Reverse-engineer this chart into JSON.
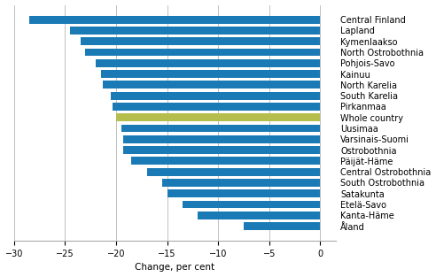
{
  "regions": [
    "Central Finland",
    "Lapland",
    "Kymenlaakso",
    "North Ostrobothnia",
    "Pohjois-Savo",
    "Kainuu",
    "North Karelia",
    "South Karelia",
    "Pirkanmaa",
    "Whole country",
    "Uusimaa",
    "Varsinais-Suomi",
    "Ostrobothnia",
    "Päijät-Häme",
    "Central Ostrobothnia",
    "South Ostrobothnia",
    "Satakunta",
    "Etelä-Savo",
    "Kanta-Häme",
    "Åland"
  ],
  "values": [
    -28.5,
    -24.5,
    -23.5,
    -23.0,
    -22.0,
    -21.5,
    -21.3,
    -20.5,
    -20.3,
    -20.0,
    -19.5,
    -19.3,
    -19.3,
    -18.5,
    -17.0,
    -15.5,
    -15.0,
    -13.5,
    -12.0,
    -7.5
  ],
  "bar_colors": [
    "#1a7ab5",
    "#1a7ab5",
    "#1a7ab5",
    "#1a7ab5",
    "#1a7ab5",
    "#1a7ab5",
    "#1a7ab5",
    "#1a7ab5",
    "#1a7ab5",
    "#b5bd4c",
    "#1a7ab5",
    "#1a7ab5",
    "#1a7ab5",
    "#1a7ab5",
    "#1a7ab5",
    "#1a7ab5",
    "#1a7ab5",
    "#1a7ab5",
    "#1a7ab5",
    "#1a7ab5"
  ],
  "xlabel": "Change, per cent",
  "xlim": [
    -30,
    1.5
  ],
  "xticks": [
    -30,
    -25,
    -20,
    -15,
    -10,
    -5,
    0
  ],
  "grid_color": "#c0c0c0",
  "bar_height": 0.72
}
